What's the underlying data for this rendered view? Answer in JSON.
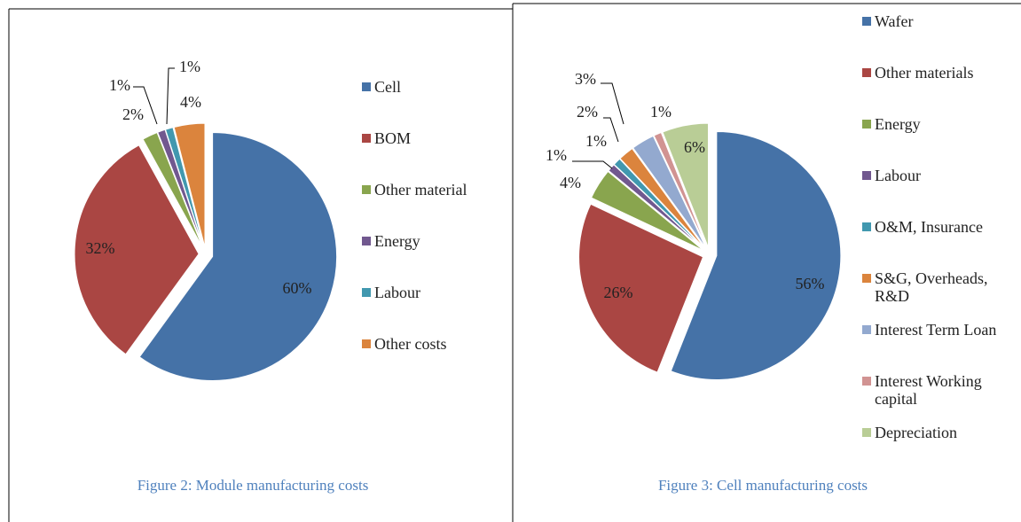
{
  "chart_data": [
    {
      "type": "pie",
      "caption": "Figure 2: Module manufacturing costs",
      "categories": [
        "Cell",
        "BOM",
        "Other material",
        "Energy",
        "Labour",
        "Other costs"
      ],
      "values": [
        60,
        32,
        2,
        1,
        1,
        4
      ],
      "value_labels": [
        "60%",
        "32%",
        "2%",
        "1%",
        "1%",
        "4%"
      ],
      "colors": [
        "#4572a7",
        "#aa4643",
        "#89a54e",
        "#71588f",
        "#4198af",
        "#db843d"
      ]
    },
    {
      "type": "pie",
      "caption": "Figure 3: Cell manufacturing costs",
      "categories": [
        "Wafer",
        "Other materials",
        "Energy",
        "Labour",
        "O&M, Insurance",
        "S&G, Overheads, R&D",
        "Interest Term Loan",
        "Interest Working capital",
        "Depreciation"
      ],
      "values": [
        56,
        26,
        4,
        1,
        1,
        2,
        3,
        1,
        6
      ],
      "value_labels": [
        "56%",
        "26%",
        "4%",
        "1%",
        "1%",
        "2%",
        "3%",
        "1%",
        "6%"
      ],
      "colors": [
        "#4572a7",
        "#aa4643",
        "#89a54e",
        "#71588f",
        "#4198af",
        "#db843d",
        "#93a9cf",
        "#d19392",
        "#b9cd96"
      ]
    }
  ]
}
